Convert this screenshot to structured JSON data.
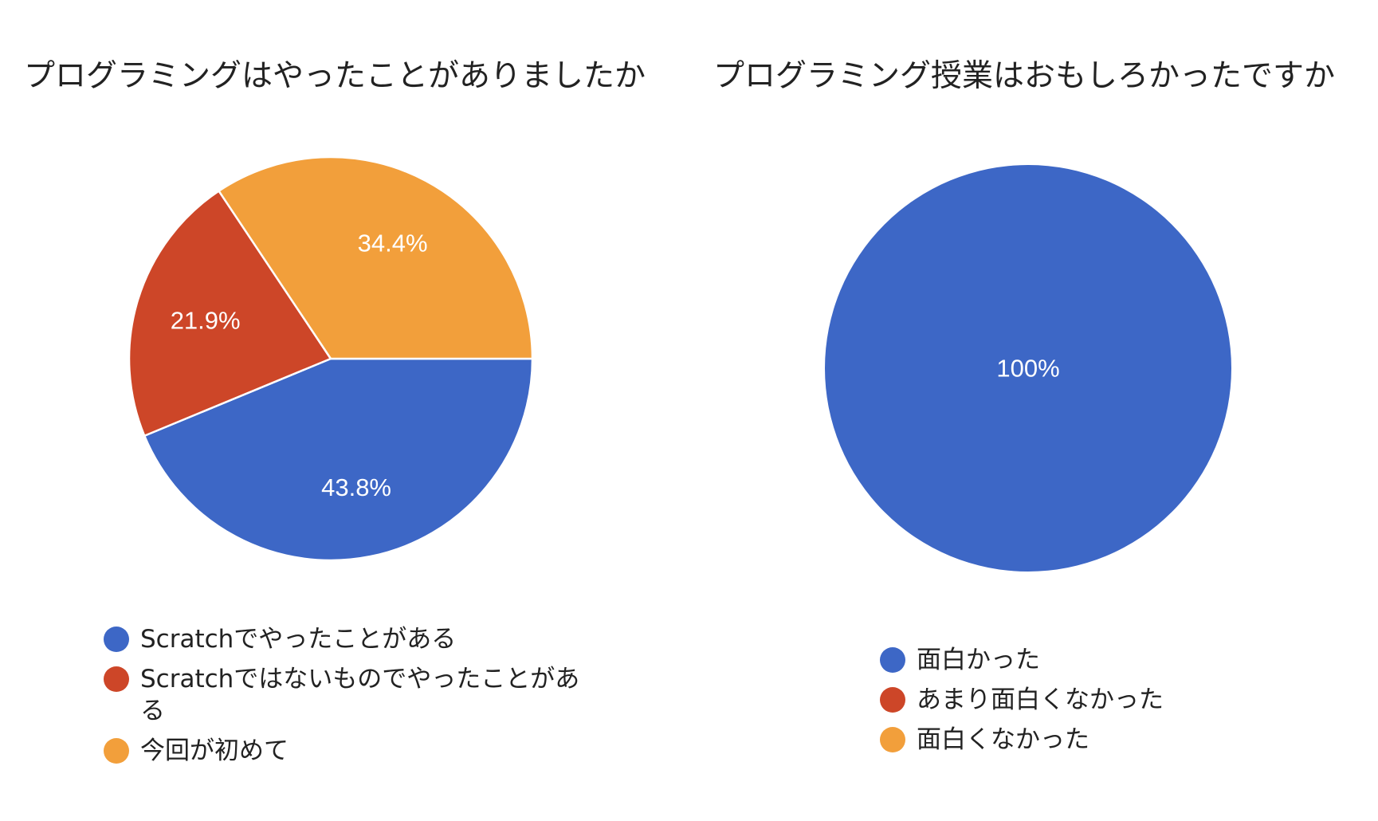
{
  "colors": {
    "blue": "#3d67c6",
    "red": "#cd4628",
    "orange": "#f29f3b"
  },
  "chart_data": [
    {
      "type": "pie",
      "title": "プログラミングはやったことがありましたか",
      "categories": [
        "Scratchでやったことがある",
        "Scratchではないものでやったことがある",
        "今回が初めて"
      ],
      "values": [
        43.8,
        21.9,
        34.4
      ],
      "labels": [
        "43.8%",
        "21.9%",
        "34.4%"
      ],
      "colors": [
        "#3d67c6",
        "#cd4628",
        "#f29f3b"
      ],
      "legend": "bottom"
    },
    {
      "type": "pie",
      "title": "プログラミング授業はおもしろかったですか",
      "categories": [
        "面白かった",
        "あまり面白くなかった",
        "面白くなかった"
      ],
      "values": [
        100,
        0,
        0
      ],
      "labels": [
        "100%",
        "",
        ""
      ],
      "colors": [
        "#3d67c6",
        "#cd4628",
        "#f29f3b"
      ],
      "legend": "bottom"
    }
  ]
}
